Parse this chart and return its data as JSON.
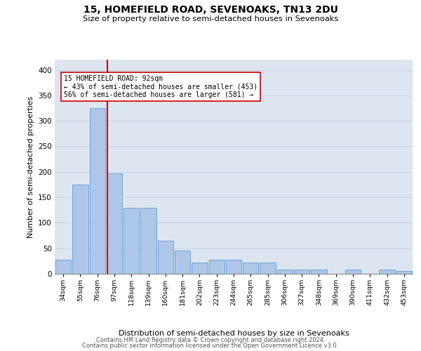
{
  "title1": "15, HOMEFIELD ROAD, SEVENOAKS, TN13 2DU",
  "title2": "Size of property relative to semi-detached houses in Sevenoaks",
  "xlabel": "Distribution of semi-detached houses by size in Sevenoaks",
  "ylabel": "Number of semi-detached properties",
  "categories": [
    "34sqm",
    "55sqm",
    "76sqm",
    "97sqm",
    "118sqm",
    "139sqm",
    "160sqm",
    "181sqm",
    "202sqm",
    "223sqm",
    "244sqm",
    "265sqm",
    "285sqm",
    "306sqm",
    "327sqm",
    "348sqm",
    "369sqm",
    "390sqm",
    "411sqm",
    "432sqm",
    "453sqm"
  ],
  "values": [
    28,
    175,
    325,
    197,
    130,
    130,
    65,
    46,
    22,
    28,
    28,
    22,
    22,
    8,
    8,
    8,
    0,
    8,
    0,
    8,
    5
  ],
  "bar_color": "#aec6e8",
  "bar_edge_color": "#5b9bd5",
  "annotation_line1": "15 HOMEFIELD ROAD: 92sqm",
  "annotation_line2": "← 43% of semi-detached houses are smaller (453)",
  "annotation_line3": "56% of semi-detached houses are larger (581) →",
  "vline_color": "#cc0000",
  "vline_x": 2.575,
  "footer1": "Contains HM Land Registry data © Crown copyright and database right 2024.",
  "footer2": "Contains public sector information licensed under the Open Government Licence v3.0.",
  "ylim": [
    0,
    420
  ],
  "yticks": [
    0,
    50,
    100,
    150,
    200,
    250,
    300,
    350,
    400
  ],
  "grid_color": "#c8d4e8",
  "bg_color": "#dde6f0"
}
